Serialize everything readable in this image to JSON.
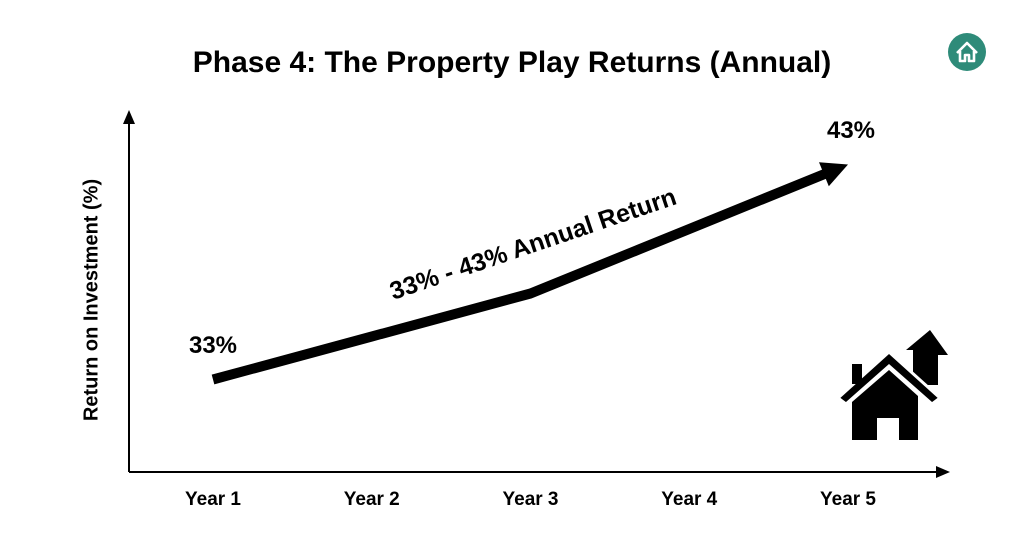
{
  "chart_data": {
    "type": "line",
    "title": "Phase 4: The Property Play Returns (Annual)",
    "y_label": "Return on Investment (%)",
    "categories": [
      "Year 1",
      "Year 2",
      "Year 3",
      "Year 4",
      "Year 5"
    ],
    "values": [
      33,
      35,
      37,
      40,
      43
    ],
    "value_labels": [
      "33%",
      null,
      null,
      null,
      "43%"
    ],
    "annotation": "33% - 43% Annual Return",
    "color": "#000000",
    "ylim": [
      28.7,
      45.3
    ],
    "grid": false
  }
}
